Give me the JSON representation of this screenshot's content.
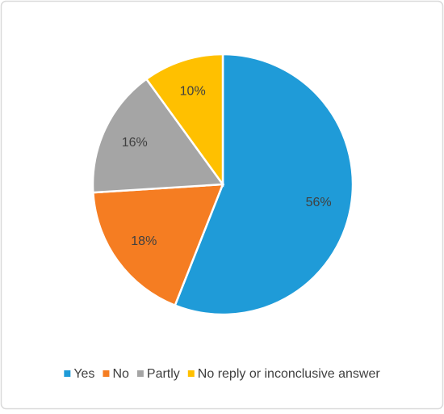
{
  "chart_data": {
    "type": "pie",
    "categories": [
      "Yes",
      "No",
      "Partly",
      "No reply or inconclusive answer"
    ],
    "values": [
      56,
      18,
      16,
      10
    ],
    "value_labels": [
      "56%",
      "18%",
      "16%",
      "10%"
    ],
    "colors": [
      "#1f9bd8",
      "#f57d22",
      "#a5a5a5",
      "#ffc000"
    ],
    "legend": "bottom"
  }
}
